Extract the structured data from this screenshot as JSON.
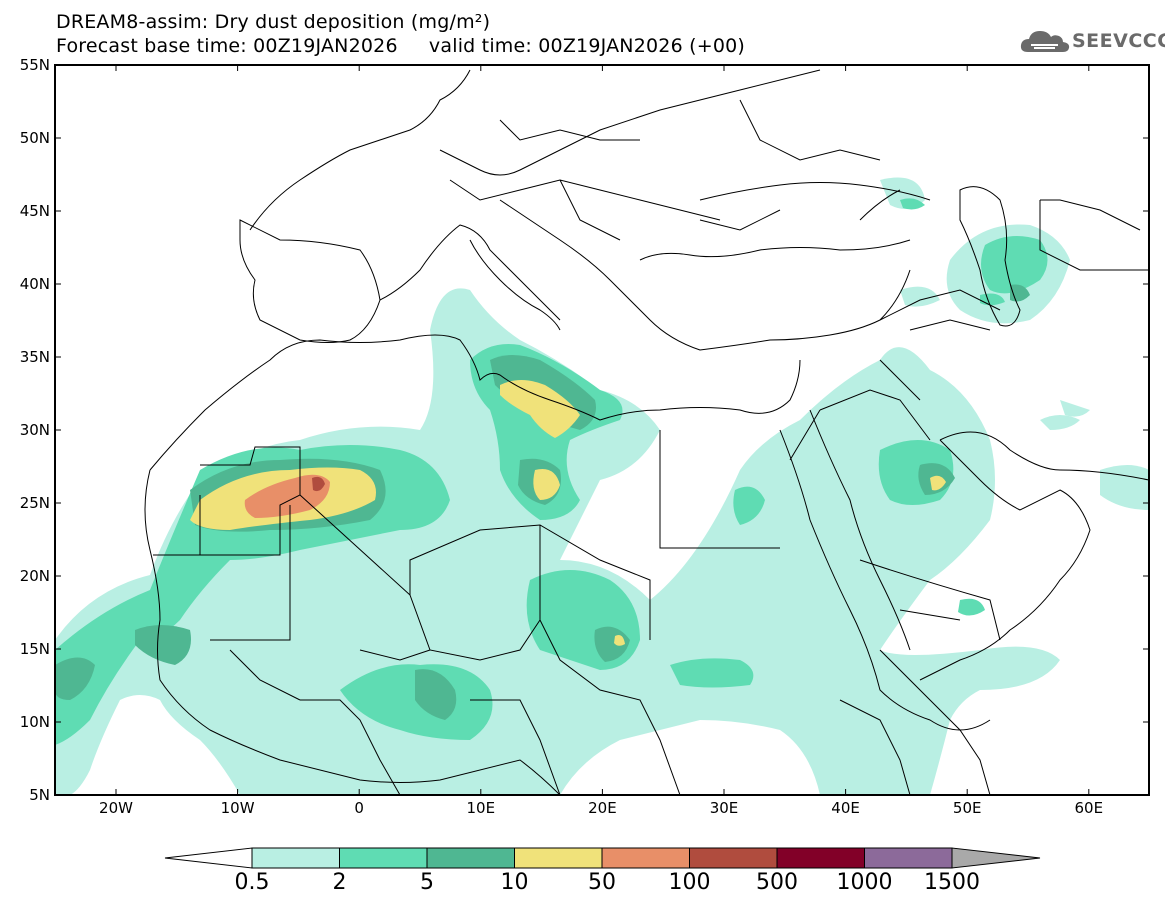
{
  "header": {
    "title_line1": "DREAM8-assim: Dry dust deposition (mg/m²)",
    "title_line2": "Forecast base time: 00Z19JAN2026     valid time: 00Z19JAN2026 (+00)"
  },
  "logo": {
    "text": "SEEVCCC",
    "icon": "cloud-icon"
  },
  "map": {
    "lat_labels": [
      "55N",
      "50N",
      "45N",
      "40N",
      "35N",
      "30N",
      "25N",
      "20N",
      "15N",
      "10N",
      "5N"
    ],
    "lon_labels": [
      "20W",
      "10W",
      "0",
      "10E",
      "20E",
      "30E",
      "40E",
      "50E",
      "60E"
    ]
  },
  "colorbar": {
    "labels": [
      "0.5",
      "2",
      "5",
      "10",
      "50",
      "100",
      "500",
      "1000",
      "1500"
    ],
    "colors": [
      "#ffffff",
      "#b9efe3",
      "#5fdcb3",
      "#4fb792",
      "#f0e27a",
      "#e88f68",
      "#b04c3e",
      "#820028",
      "#8c6a9a",
      "#a9a9a9"
    ]
  }
}
